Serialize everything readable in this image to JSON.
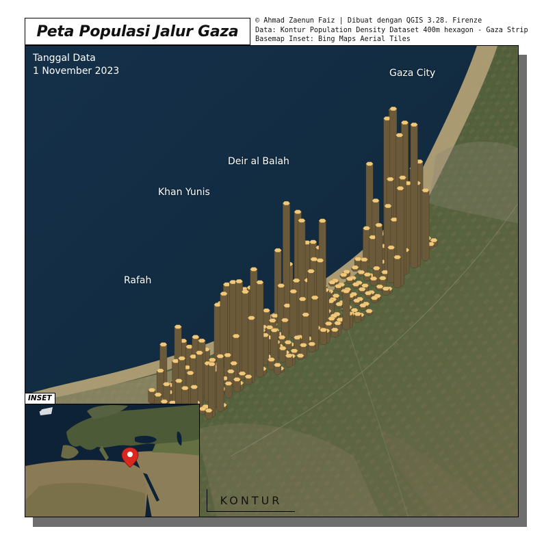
{
  "title": "Peta Populasi Jalur Gaza",
  "credits": {
    "line1": "© Ahmad Zaenun Faiz | Dibuat dengan QGIS 3.28. Firenze",
    "line2": "Data: Kontur Population Density Dataset 400m hexagon - Gaza Strip",
    "line3": "Basemap Inset: Bing Maps Aerial Tiles"
  },
  "date": {
    "label": "Tanggal Data",
    "value": "1 November 2023"
  },
  "places": {
    "gaza_city": "Gaza City",
    "deir_al_balah": "Deir al Balah",
    "khan_yunis": "Khan Yunis",
    "rafah": "Rafah"
  },
  "inset": {
    "tag": "INSET"
  },
  "logo": "KONTUR",
  "colors": {
    "sea": "#16324d",
    "land": "#4a5a36",
    "sand": "#c8b48a",
    "hex_top": "#f2c97a",
    "hex_side": "#6b5a3a",
    "marker": "#d8281f"
  },
  "icons": {
    "location_marker": "map-pin-icon"
  }
}
